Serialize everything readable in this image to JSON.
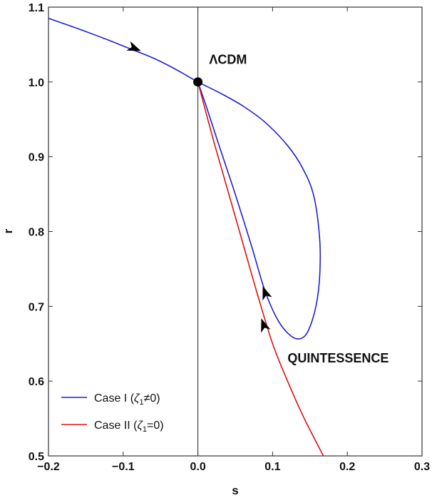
{
  "chart_data": {
    "type": "line",
    "title": "",
    "xlabel": "s",
    "ylabel": "r",
    "xlim": [
      -0.2,
      0.3
    ],
    "ylim": [
      0.5,
      1.1
    ],
    "xticks": [
      -0.2,
      -0.1,
      0.0,
      0.1,
      0.2,
      0.3
    ],
    "xtick_labels": [
      "−0.2",
      "−0.1",
      "0.0",
      "0.1",
      "0.2",
      "0.3"
    ],
    "yticks": [
      0.5,
      0.6,
      0.7,
      0.8,
      0.9,
      1.0,
      1.1
    ],
    "ytick_labels": [
      "0.5",
      "0.6",
      "0.7",
      "0.8",
      "0.9",
      "1.0",
      "1.1"
    ],
    "grid": false,
    "legend_position": "bottom-left",
    "series": [
      {
        "name": "Case I (ζ₁≠0)",
        "legend_main": "Case I (",
        "legend_sym": "ζ",
        "legend_sub": "1",
        "legend_rest": "≠0)",
        "color": "#1f1fd6",
        "points": [
          [
            -0.2,
            1.085
          ],
          [
            -0.16,
            1.071
          ],
          [
            -0.12,
            1.056
          ],
          [
            -0.09,
            1.044
          ],
          [
            -0.06,
            1.032
          ],
          [
            -0.03,
            1.017
          ],
          [
            0.0,
            1.0
          ],
          [
            0.03,
            0.985
          ],
          [
            0.06,
            0.968
          ],
          [
            0.09,
            0.946
          ],
          [
            0.12,
            0.915
          ],
          [
            0.14,
            0.885
          ],
          [
            0.155,
            0.848
          ],
          [
            0.163,
            0.79
          ],
          [
            0.163,
            0.74
          ],
          [
            0.158,
            0.7
          ],
          [
            0.148,
            0.668
          ],
          [
            0.138,
            0.657
          ],
          [
            0.125,
            0.66
          ],
          [
            0.108,
            0.68
          ],
          [
            0.09,
            0.72
          ],
          [
            0.072,
            0.78
          ],
          [
            0.05,
            0.85
          ],
          [
            0.03,
            0.91
          ],
          [
            0.012,
            0.965
          ],
          [
            0.0,
            1.0
          ]
        ],
        "arrows": [
          {
            "x": -0.085,
            "y": 1.045,
            "direction": "right"
          },
          {
            "x": 0.09,
            "y": 0.718,
            "direction": "up"
          }
        ]
      },
      {
        "name": "Case II (ζ₁=0)",
        "legend_main": "Case II (",
        "legend_sym": "ζ",
        "legend_sub": "1",
        "legend_rest": "=0)",
        "color": "#e01010",
        "points": [
          [
            0.0,
            1.0
          ],
          [
            0.02,
            0.925
          ],
          [
            0.04,
            0.855
          ],
          [
            0.06,
            0.785
          ],
          [
            0.08,
            0.715
          ],
          [
            0.1,
            0.65
          ],
          [
            0.12,
            0.6
          ],
          [
            0.14,
            0.555
          ],
          [
            0.155,
            0.525
          ],
          [
            0.168,
            0.5
          ]
        ],
        "arrows": [
          {
            "x": 0.088,
            "y": 0.675,
            "direction": "up"
          }
        ]
      }
    ],
    "points": [
      {
        "label": "ΛCDM",
        "x": 0.0,
        "y": 1.0
      }
    ],
    "annotations": [
      {
        "text": "ΛCDM",
        "x": 0.015,
        "y": 1.024
      },
      {
        "text": "QUINTESSENCE",
        "x": 0.12,
        "y": 0.625
      }
    ],
    "reference_lines": [
      {
        "orientation": "vertical",
        "x": 0.0
      }
    ]
  }
}
